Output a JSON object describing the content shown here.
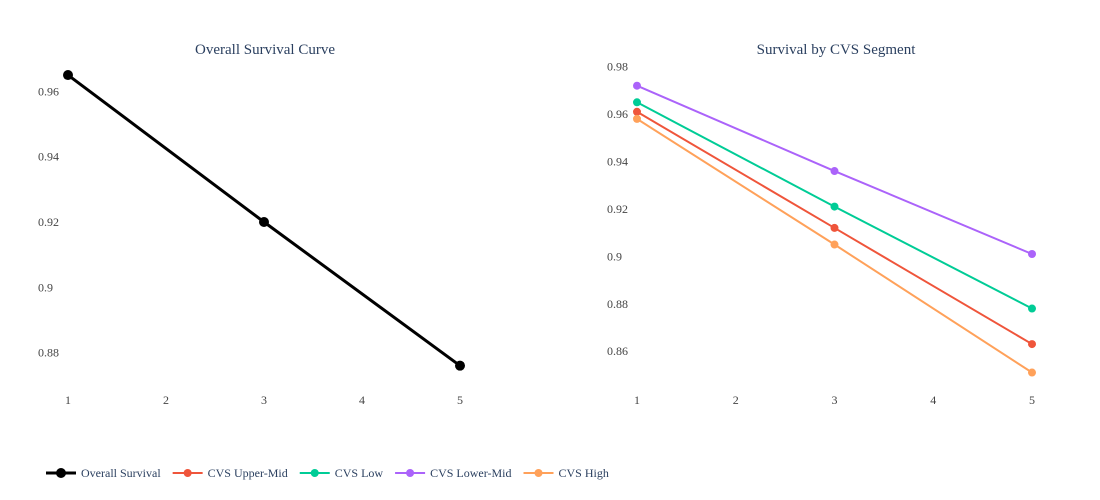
{
  "chart_data": [
    {
      "type": "line",
      "title": "Overall Survival Curve",
      "x": [
        1,
        3,
        5
      ],
      "xticks": [
        1,
        2,
        3,
        4,
        5
      ],
      "yticks": [
        0.88,
        0.9,
        0.92,
        0.94,
        0.96
      ],
      "ytick_labels": [
        "0.88",
        "0.9",
        "0.92",
        "0.94",
        "0.96"
      ],
      "xlim": [
        1,
        5
      ],
      "ylim": [
        0.871,
        0.969
      ],
      "grid": false,
      "series": [
        {
          "name": "Overall Survival",
          "values": [
            0.965,
            0.92,
            0.876
          ],
          "color": "#000000"
        }
      ]
    },
    {
      "type": "line",
      "title": "Survival by CVS Segment",
      "x": [
        1,
        3,
        5
      ],
      "xticks": [
        1,
        2,
        3,
        4,
        5
      ],
      "yticks": [
        0.86,
        0.88,
        0.9,
        0.92,
        0.94,
        0.96,
        0.98
      ],
      "ytick_labels": [
        "0.86",
        "0.88",
        "0.9",
        "0.92",
        "0.94",
        "0.96",
        "0.98"
      ],
      "xlim": [
        1,
        5
      ],
      "ylim": [
        0.847,
        0.982
      ],
      "grid": false,
      "series": [
        {
          "name": "CVS Upper-Mid",
          "values": [
            0.961,
            0.912,
            0.863
          ],
          "color": "#EF553B"
        },
        {
          "name": "CVS Low",
          "values": [
            0.965,
            0.921,
            0.878
          ],
          "color": "#00CC96"
        },
        {
          "name": "CVS Lower-Mid",
          "values": [
            0.972,
            0.936,
            0.901
          ],
          "color": "#AB63FA"
        },
        {
          "name": "CVS High",
          "values": [
            0.958,
            0.905,
            0.851
          ],
          "color": "#FFA15A"
        }
      ]
    }
  ],
  "legend": {
    "placement": "bottom-left",
    "items": [
      {
        "label": "Overall Survival",
        "color": "#000000"
      },
      {
        "label": "CVS Upper-Mid",
        "color": "#EF553B"
      },
      {
        "label": "CVS Low",
        "color": "#00CC96"
      },
      {
        "label": "CVS Lower-Mid",
        "color": "#AB63FA"
      },
      {
        "label": "CVS High",
        "color": "#FFA15A"
      }
    ]
  }
}
